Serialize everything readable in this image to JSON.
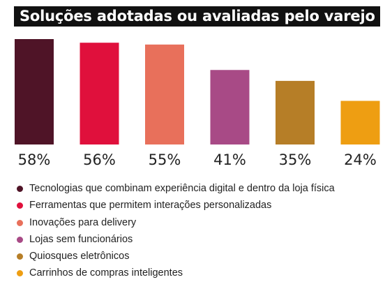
{
  "chart_data": {
    "type": "bar",
    "title": "Soluções adotadas ou avaliadas pelo varejo",
    "categories": [
      "Tecnologias que combinam experiência digital e dentro da loja física",
      "Ferramentas que permitem interações personalizadas",
      "Inovações para delivery",
      "Lojas sem funcionários",
      "Quiosques eletrônicos",
      "Carrinhos de compras inteligentes"
    ],
    "values": [
      58,
      56,
      55,
      41,
      35,
      24
    ],
    "value_labels": [
      "58%",
      "56%",
      "55%",
      "41%",
      "35%",
      "24%"
    ],
    "colors": [
      "#4f1427",
      "#e0103c",
      "#e8705b",
      "#a84a86",
      "#b67e27",
      "#ee9e12"
    ],
    "unit": "%",
    "ylim": [
      0,
      58
    ],
    "grid": false,
    "legend_position": "bottom"
  }
}
